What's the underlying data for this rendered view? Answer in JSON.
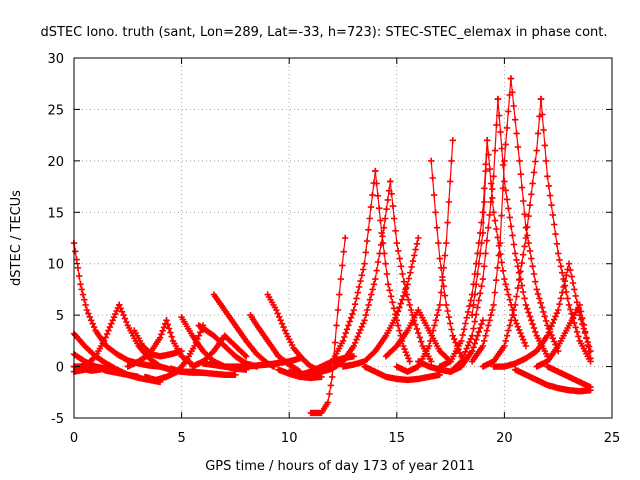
{
  "chart_data": {
    "type": "scatter",
    "title": "dSTEC Iono. truth (sant, Lon=289, Lat=-33, h=723): STEC-STEC_elemax in phase cont.",
    "xlabel": "GPS time / hours of day 173 of year 2011",
    "ylabel": "dSTEC  / TECUs",
    "xlim": [
      0,
      25
    ],
    "ylim": [
      -5,
      30
    ],
    "xticks": [
      0,
      5,
      10,
      15,
      20,
      25
    ],
    "yticks": [
      -5,
      0,
      5,
      10,
      15,
      20,
      25,
      30
    ],
    "xtick_labels": [
      "0",
      "5",
      "10",
      "15",
      "20",
      "25"
    ],
    "ytick_labels": [
      "-5",
      "0",
      "5",
      "10",
      "15",
      "20",
      "25",
      "30"
    ],
    "grid": true,
    "marker": "plus",
    "color": "#ff0000",
    "series": [
      {
        "x": [
          0.0,
          0.3,
          0.6,
          1.0,
          1.5,
          2.0,
          2.5,
          3.0,
          3.5,
          4.0
        ],
        "y": [
          12.0,
          8.0,
          5.5,
          3.5,
          2.0,
          1.2,
          0.6,
          0.3,
          0.1,
          0.0
        ]
      },
      {
        "x": [
          0.0,
          0.3,
          0.6,
          1.0,
          1.4,
          1.8,
          2.1
        ],
        "y": [
          0.0,
          0.0,
          0.2,
          1.0,
          2.5,
          4.5,
          6.0
        ]
      },
      {
        "x": [
          2.1,
          2.5,
          3.0,
          3.5,
          4.0,
          4.5,
          5.0,
          5.5,
          6.0
        ],
        "y": [
          6.0,
          4.0,
          2.0,
          0.8,
          0.0,
          -0.3,
          -0.5,
          -0.5,
          -0.6
        ]
      },
      {
        "x": [
          0.0,
          0.5,
          1.0,
          1.5,
          2.0,
          2.5,
          3.0,
          3.5,
          4.0
        ],
        "y": [
          3.2,
          2.0,
          1.0,
          0.3,
          -0.3,
          -0.8,
          -1.1,
          -1.3,
          -1.5
        ]
      },
      {
        "x": [
          0.0,
          0.5,
          1.0,
          1.5,
          2.0,
          2.5,
          3.0
        ],
        "y": [
          1.2,
          0.5,
          0.0,
          -0.4,
          -0.6,
          -0.8,
          -1.0
        ]
      },
      {
        "x": [
          0.0,
          0.4,
          0.8,
          1.2,
          1.6
        ],
        "y": [
          0.0,
          -0.2,
          -0.4,
          -0.3,
          0.0
        ]
      },
      {
        "x": [
          0.0,
          0.5,
          1.0,
          1.5,
          2.0
        ],
        "y": [
          -0.5,
          -0.3,
          0.0,
          -0.2,
          -0.4
        ]
      },
      {
        "x": [
          2.8,
          3.2,
          3.6,
          4.0,
          4.5,
          5.0
        ],
        "y": [
          3.5,
          2.0,
          1.2,
          1.0,
          1.2,
          1.5
        ]
      },
      {
        "x": [
          2.5,
          3.0,
          3.5,
          4.0,
          4.3
        ],
        "y": [
          0.0,
          0.5,
          1.2,
          2.8,
          4.5
        ]
      },
      {
        "x": [
          4.3,
          4.6,
          5.0,
          5.5
        ],
        "y": [
          4.5,
          2.5,
          1.0,
          0.2
        ]
      },
      {
        "x": [
          3.3,
          3.8,
          4.3,
          4.8,
          5.2,
          5.6,
          6.0
        ],
        "y": [
          -1.0,
          -1.3,
          -1.0,
          -0.5,
          0.5,
          2.0,
          4.0
        ]
      },
      {
        "x": [
          5.0,
          5.5,
          6.0,
          6.5,
          7.0,
          7.5,
          8.0
        ],
        "y": [
          4.8,
          3.0,
          1.5,
          0.5,
          0.0,
          -0.2,
          -0.3
        ]
      },
      {
        "x": [
          4.5,
          5.0,
          5.5,
          6.0,
          6.5,
          7.0,
          7.5
        ],
        "y": [
          -0.2,
          -0.5,
          -0.6,
          -0.6,
          -0.7,
          -0.8,
          -0.8
        ]
      },
      {
        "x": [
          5.5,
          6.0,
          6.5,
          7.0,
          7.5,
          8.0
        ],
        "y": [
          0.0,
          0.5,
          1.5,
          3.0,
          2.0,
          1.0
        ]
      },
      {
        "x": [
          5.8,
          6.5,
          7.0,
          7.5,
          8.0,
          8.5
        ],
        "y": [
          4.0,
          3.0,
          2.0,
          1.0,
          0.3,
          0.0
        ]
      },
      {
        "x": [
          6.5,
          7.0,
          7.5,
          8.0,
          8.5,
          9.0,
          9.3
        ],
        "y": [
          7.0,
          5.5,
          4.0,
          2.5,
          1.2,
          0.3,
          0.0
        ]
      },
      {
        "x": [
          6.0,
          7.0,
          8.0,
          9.0,
          10.0,
          10.5
        ],
        "y": [
          0.3,
          0.0,
          0.0,
          0.2,
          0.5,
          0.8
        ]
      },
      {
        "x": [
          8.2,
          8.5,
          9.0,
          9.5,
          10.0,
          10.5
        ],
        "y": [
          5.0,
          4.0,
          2.5,
          1.0,
          0.2,
          -0.5
        ]
      },
      {
        "x": [
          9.0,
          9.4,
          9.8,
          10.2,
          10.6,
          11.0,
          11.5
        ],
        "y": [
          7.0,
          5.5,
          3.5,
          1.8,
          0.8,
          0.0,
          -0.5
        ]
      },
      {
        "x": [
          9.5,
          10.0,
          10.5,
          11.0,
          11.5
        ],
        "y": [
          -0.3,
          -0.7,
          -1.0,
          -1.1,
          -1.0
        ]
      },
      {
        "x": [
          10.0,
          10.5,
          11.0,
          11.5,
          12.0,
          12.5,
          13.0
        ],
        "y": [
          -0.5,
          -0.8,
          -0.5,
          0.0,
          0.5,
          0.8,
          1.0
        ]
      },
      {
        "x": [
          11.0,
          11.5,
          11.8,
          12.0,
          12.2,
          12.4,
          12.6
        ],
        "y": [
          -4.5,
          -4.5,
          -3.5,
          -1.0,
          4.0,
          8.5,
          12.5
        ]
      },
      {
        "x": [
          11.0,
          11.5,
          12.0,
          12.5,
          13.0,
          13.5,
          13.8,
          14.0
        ],
        "y": [
          -1.0,
          -0.5,
          0.5,
          2.5,
          5.5,
          10.0,
          15.5,
          19.0
        ]
      },
      {
        "x": [
          11.5,
          12.0,
          12.5,
          13.0,
          13.5,
          14.0,
          14.4,
          14.7
        ],
        "y": [
          -0.5,
          -0.2,
          0.5,
          2.0,
          4.5,
          8.5,
          13.5,
          18.0
        ]
      },
      {
        "x": [
          12.5,
          13.0,
          13.5,
          14.0,
          14.5,
          15.0,
          15.5,
          16.0
        ],
        "y": [
          0.0,
          0.2,
          0.5,
          1.5,
          3.0,
          5.0,
          8.0,
          12.5
        ]
      },
      {
        "x": [
          14.0,
          14.3,
          14.6,
          15.0,
          15.3,
          15.6
        ],
        "y": [
          19.0,
          13.0,
          8.0,
          4.5,
          2.0,
          0.5
        ]
      },
      {
        "x": [
          14.7,
          15.0,
          15.4,
          15.8,
          16.2,
          16.6
        ],
        "y": [
          18.0,
          12.0,
          7.5,
          4.5,
          2.0,
          0.5
        ]
      },
      {
        "x": [
          13.5,
          14.0,
          14.5,
          15.0,
          15.5,
          16.0,
          16.5,
          17.0
        ],
        "y": [
          0.0,
          -0.5,
          -1.0,
          -1.2,
          -1.3,
          -1.2,
          -1.0,
          -0.8
        ]
      },
      {
        "x": [
          14.5,
          15.0,
          15.5,
          16.0,
          16.5,
          17.0,
          17.5
        ],
        "y": [
          1.0,
          2.0,
          3.5,
          5.5,
          3.5,
          1.5,
          0.5
        ]
      },
      {
        "x": [
          15.0,
          15.5,
          16.0,
          16.5,
          17.0,
          17.3,
          17.6
        ],
        "y": [
          0.0,
          -0.5,
          0.0,
          2.0,
          6.0,
          12.0,
          22.0
        ]
      },
      {
        "x": [
          16.6,
          16.8,
          17.0,
          17.3,
          17.6,
          18.0
        ],
        "y": [
          20.0,
          15.0,
          10.5,
          6.0,
          3.0,
          1.0
        ]
      },
      {
        "x": [
          16.0,
          16.5,
          17.0,
          17.5,
          18.0,
          18.5,
          19.0
        ],
        "y": [
          0.5,
          0.0,
          -0.3,
          -0.5,
          0.0,
          1.5,
          4.5
        ]
      },
      {
        "x": [
          17.0,
          17.5,
          18.0,
          18.5,
          19.0,
          19.2
        ],
        "y": [
          0.0,
          0.5,
          2.5,
          7.0,
          15.0,
          22.0
        ]
      },
      {
        "x": [
          17.5,
          18.0,
          18.5,
          19.0,
          19.5,
          19.7
        ],
        "y": [
          -0.5,
          0.5,
          3.0,
          8.5,
          18.5,
          26.0
        ]
      },
      {
        "x": [
          18.5,
          19.0,
          19.2,
          19.5,
          20.0,
          20.5,
          21.0
        ],
        "y": [
          5.0,
          13.0,
          22.0,
          15.0,
          8.5,
          4.5,
          2.0
        ]
      },
      {
        "x": [
          19.7,
          20.0,
          20.5,
          21.0,
          21.5,
          22.0
        ],
        "y": [
          26.0,
          18.0,
          11.0,
          6.0,
          3.0,
          1.0
        ]
      },
      {
        "x": [
          18.5,
          19.0,
          19.5,
          19.8,
          20.0,
          20.3
        ],
        "y": [
          0.5,
          2.0,
          6.0,
          12.0,
          20.0,
          28.0
        ]
      },
      {
        "x": [
          20.3,
          20.7,
          21.0,
          21.5,
          22.0,
          22.5
        ],
        "y": [
          28.0,
          20.0,
          13.5,
          7.5,
          4.0,
          1.5
        ]
      },
      {
        "x": [
          19.0,
          19.5,
          20.0,
          20.5,
          21.0,
          21.5,
          21.7
        ],
        "y": [
          0.0,
          0.5,
          2.0,
          6.0,
          12.5,
          21.0,
          26.0
        ]
      },
      {
        "x": [
          21.7,
          22.0,
          22.5,
          23.0,
          23.5,
          24.0
        ],
        "y": [
          26.0,
          18.5,
          11.0,
          6.0,
          2.5,
          0.5
        ]
      },
      {
        "x": [
          19.5,
          20.0,
          20.5,
          21.0,
          21.5,
          22.0,
          22.5,
          23.0,
          23.5,
          24.0
        ],
        "y": [
          0.0,
          0.0,
          0.3,
          0.8,
          1.5,
          3.0,
          5.5,
          10.0,
          5.0,
          1.5
        ]
      },
      {
        "x": [
          20.5,
          21.0,
          21.5,
          22.0,
          22.5,
          23.0,
          23.5,
          24.0
        ],
        "y": [
          -0.3,
          -0.8,
          -1.3,
          -1.8,
          -2.1,
          -2.3,
          -2.4,
          -2.3
        ]
      },
      {
        "x": [
          21.5,
          22.0,
          22.5,
          23.0,
          23.5,
          24.0
        ],
        "y": [
          0.0,
          0.5,
          2.0,
          4.0,
          6.0,
          0.8
        ]
      },
      {
        "x": [
          22.0,
          22.5,
          23.0,
          23.5,
          24.0
        ],
        "y": [
          0.0,
          -0.5,
          -1.0,
          -1.5,
          -2.0
        ]
      }
    ]
  }
}
